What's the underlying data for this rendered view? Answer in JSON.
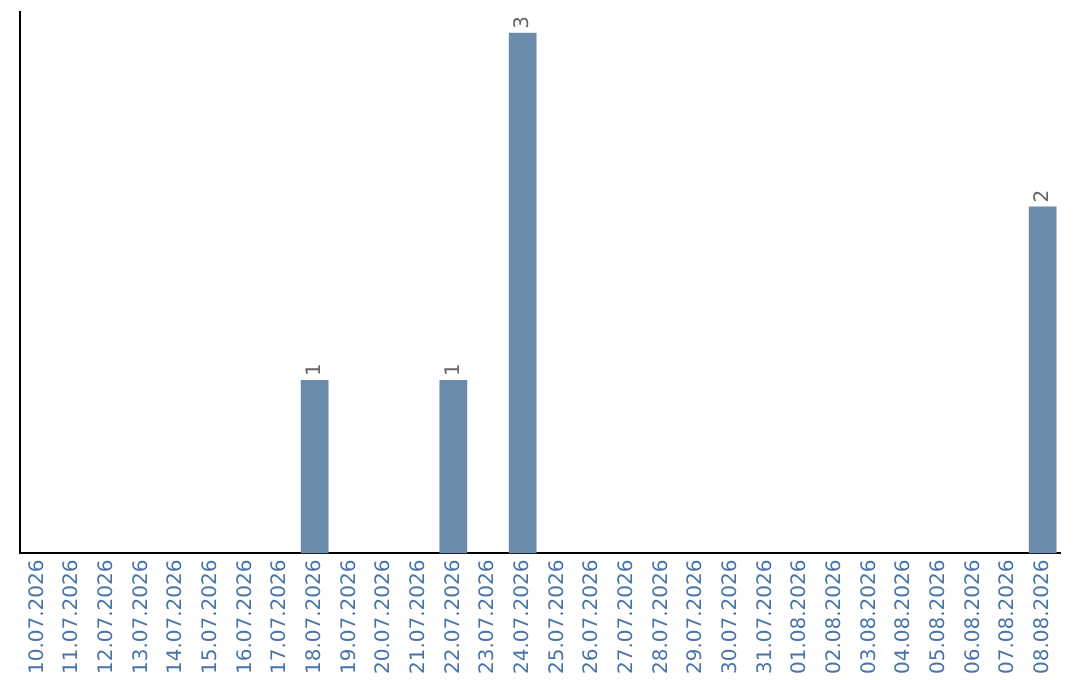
{
  "chart_data": {
    "type": "bar",
    "categories": [
      "10.07.2026",
      "11.07.2026",
      "12.07.2026",
      "13.07.2026",
      "14.07.2026",
      "15.07.2026",
      "16.07.2026",
      "17.07.2026",
      "18.07.2026",
      "19.07.2026",
      "20.07.2026",
      "21.07.2026",
      "22.07.2026",
      "23.07.2026",
      "24.07.2026",
      "25.07.2026",
      "26.07.2026",
      "27.07.2026",
      "28.07.2026",
      "29.07.2026",
      "30.07.2026",
      "31.07.2026",
      "01.08.2026",
      "02.08.2026",
      "03.08.2026",
      "04.08.2026",
      "05.08.2026",
      "06.08.2026",
      "07.08.2026",
      "08.08.2026"
    ],
    "values": [
      0,
      0,
      0,
      0,
      0,
      0,
      0,
      0,
      1,
      0,
      0,
      0,
      1,
      0,
      3,
      0,
      0,
      0,
      0,
      0,
      0,
      0,
      0,
      0,
      0,
      0,
      0,
      0,
      0,
      2
    ],
    "value_labels": [
      null,
      null,
      null,
      null,
      null,
      null,
      null,
      null,
      "1",
      null,
      null,
      null,
      "1",
      null,
      "3",
      null,
      null,
      null,
      null,
      null,
      null,
      null,
      null,
      null,
      null,
      null,
      null,
      null,
      null,
      "2"
    ],
    "color": "#6b8cac",
    "ylim": [
      0,
      3.12
    ],
    "tick_labels": "x",
    "grid": false,
    "legend": false
  }
}
